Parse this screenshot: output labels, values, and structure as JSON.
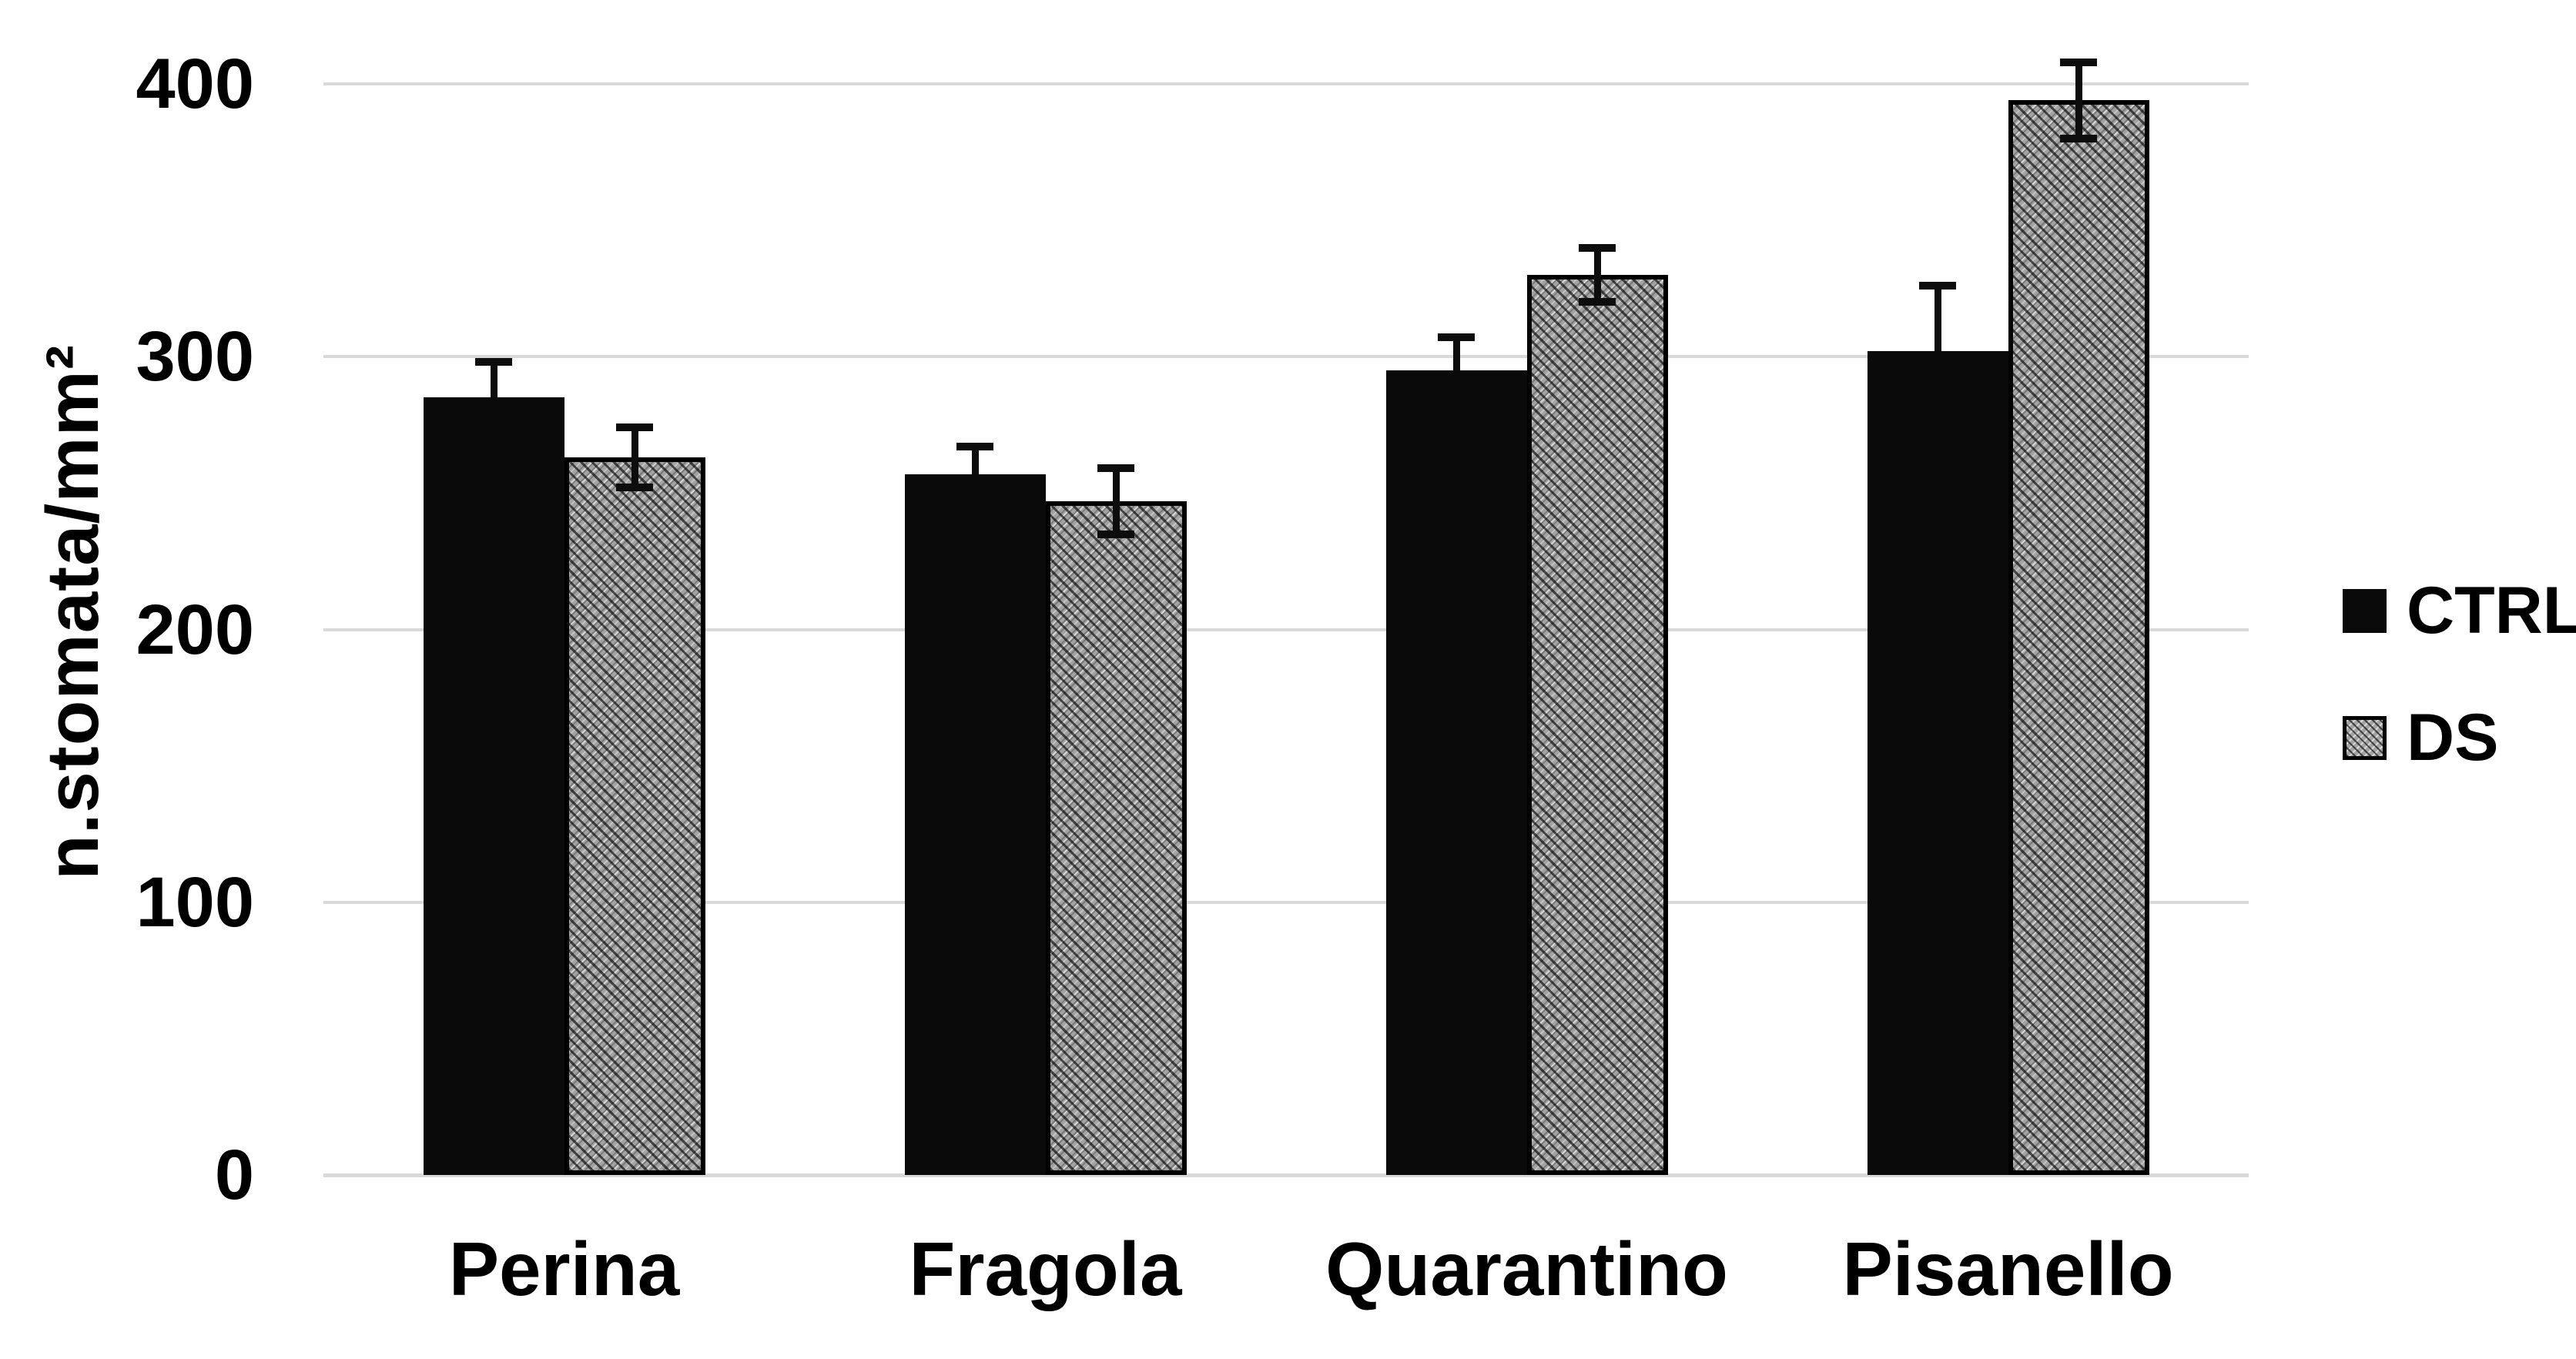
{
  "chart_data": {
    "type": "bar",
    "title": "",
    "xlabel": "",
    "ylabel": "n.stomata/mm²",
    "ylim": [
      0,
      400
    ],
    "yticks": [
      0,
      100,
      200,
      300,
      400
    ],
    "grid": true,
    "legend_position": "right",
    "background_color": "#ffffff",
    "gridline_color": "#d9d9d9",
    "text_color": "#000000",
    "categories": [
      "Perina",
      "Fragola",
      "Quarantino",
      "Pisanello"
    ],
    "series": [
      {
        "name": "CTRL",
        "fill": "solid-black",
        "color": "#0a0a0a",
        "values": [
          285,
          257,
          295,
          302
        ],
        "errors": [
          13,
          10,
          12,
          24
        ],
        "error_caps": "top"
      },
      {
        "name": "DS",
        "fill": "gray-diagonal-crosshatch",
        "color": "#a3a3a3",
        "values": [
          263,
          247,
          330,
          394
        ],
        "errors": [
          11,
          12,
          10,
          14
        ],
        "error_caps": "both"
      }
    ]
  }
}
